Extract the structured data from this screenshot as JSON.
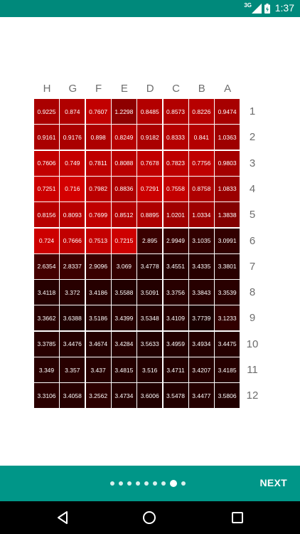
{
  "status": {
    "network": "3G",
    "time": "1:37"
  },
  "plate": {
    "columns": [
      "H",
      "G",
      "F",
      "E",
      "D",
      "C",
      "B",
      "A"
    ],
    "rows": [
      "1",
      "2",
      "3",
      "4",
      "5",
      "6",
      "7",
      "8",
      "9",
      "10",
      "11",
      "12"
    ],
    "values": [
      [
        "0.9225",
        "0.874",
        "0.7607",
        "1.2298",
        "0.8485",
        "0.8573",
        "0.8226",
        "0.9474"
      ],
      [
        "0.9161",
        "0.9176",
        "0.898",
        "0.8249",
        "0.9182",
        "0.8333",
        "0.841",
        "1.0363"
      ],
      [
        "0.7606",
        "0.749",
        "0.7811",
        "0.8088",
        "0.7678",
        "0.7823",
        "0.7756",
        "0.9803"
      ],
      [
        "0.7251",
        "0.716",
        "0.7982",
        "0.8836",
        "0.7291",
        "0.7558",
        "0.8758",
        "1.0833"
      ],
      [
        "0.8156",
        "0.8093",
        "0.7699",
        "0.8512",
        "0.8895",
        "1.0201",
        "1.0334",
        "1.3838"
      ],
      [
        "0.724",
        "0.7666",
        "0.7513",
        "0.7215",
        "2.895",
        "2.9949",
        "3.1035",
        "3.0991"
      ],
      [
        "2.6354",
        "2.8337",
        "2.9096",
        "3.069",
        "3.4778",
        "3.4551",
        "3.4335",
        "3.3801"
      ],
      [
        "3.4118",
        "3.372",
        "3.4186",
        "3.5588",
        "3.5091",
        "3.3756",
        "3.3843",
        "3.3539"
      ],
      [
        "3.3662",
        "3.6388",
        "3.5186",
        "3.4399",
        "3.5348",
        "3.4109",
        "3.7739",
        "3.1233"
      ],
      [
        "3.3785",
        "3.4476",
        "3.4674",
        "3.4284",
        "3.5633",
        "3.4959",
        "3.4934",
        "3.4475"
      ],
      [
        "3.349",
        "3.357",
        "3.437",
        "3.4815",
        "3.516",
        "3.4711",
        "3.4207",
        "3.4185"
      ],
      [
        "3.3106",
        "3.4058",
        "3.2562",
        "3.4734",
        "3.6006",
        "3.5478",
        "3.4477",
        "3.5806"
      ]
    ]
  },
  "pager": {
    "dot_count": 9,
    "active_index": 7
  },
  "footer": {
    "next_label": "NEXT"
  },
  "colors": {
    "primary": "#009688",
    "statusbar": "#00897b",
    "cell_low": "#d40000",
    "cell_high": "#1a0000"
  }
}
